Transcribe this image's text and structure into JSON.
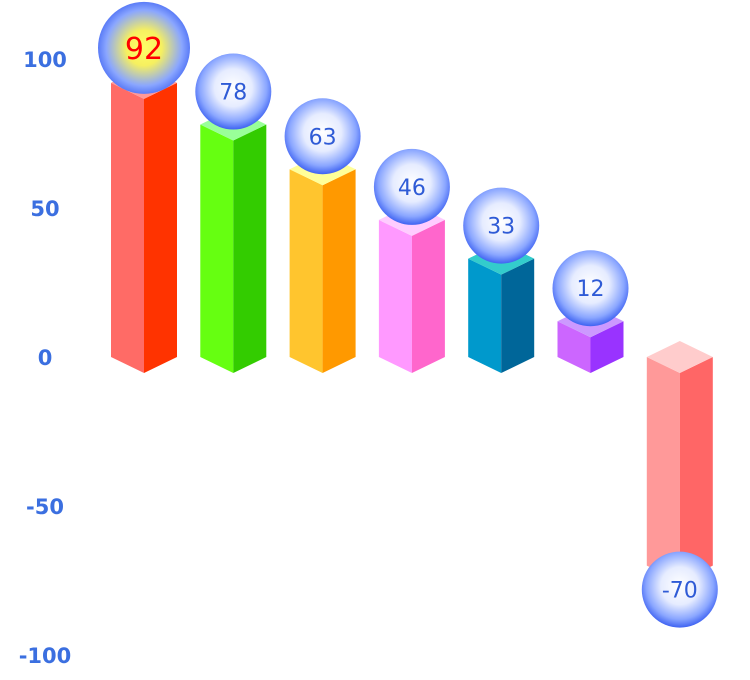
{
  "chart_data": {
    "type": "bar",
    "style": "3d-isometric",
    "title": "",
    "xlabel": "",
    "ylabel": "",
    "ylim": [
      -100,
      100
    ],
    "yticks": [
      100,
      50,
      0,
      -50,
      -100
    ],
    "grid": false,
    "legend": "none",
    "values": [
      92,
      78,
      63,
      46,
      33,
      12,
      -70
    ],
    "highlight_index": 0,
    "colors": [
      {
        "front": "#ff6b66",
        "side": "#ff3300",
        "top": "#ff9999"
      },
      {
        "front": "#66ff11",
        "side": "#33cc00",
        "top": "#99ff99"
      },
      {
        "front": "#ffc52e",
        "side": "#ff9900",
        "top": "#ffff99"
      },
      {
        "front": "#ff99ff",
        "side": "#ff66cc",
        "top": "#ffccff"
      },
      {
        "front": "#0099cc",
        "side": "#006699",
        "top": "#33cccc"
      },
      {
        "front": "#cc66ff",
        "side": "#9933ff",
        "top": "#cc99ff"
      },
      {
        "front": "#ff9999",
        "side": "#ff6666",
        "top": "#ffcccc"
      }
    ]
  }
}
